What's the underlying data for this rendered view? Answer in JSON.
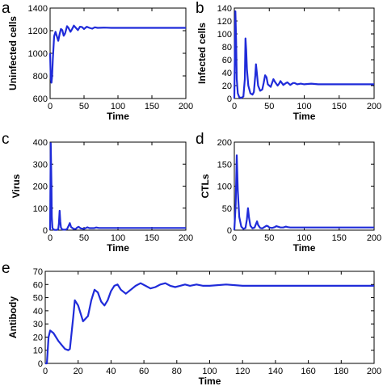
{
  "chart_data": [
    {
      "panel": "a",
      "type": "line",
      "xlabel": "Time",
      "ylabel": "Uninfected cells",
      "xlim": [
        0,
        200
      ],
      "ylim": [
        600,
        1400
      ],
      "xticks": [
        "0",
        "50",
        "100",
        "150",
        "200"
      ],
      "yticks": [
        "600",
        "800",
        "1000",
        "1200",
        "1400"
      ],
      "color": "#1f2bd9",
      "series": [
        {
          "x": [
            0,
            1,
            2,
            3,
            4,
            6,
            8,
            10,
            12,
            14,
            16,
            18,
            20,
            22,
            25,
            27,
            30,
            32,
            35,
            38,
            41,
            44,
            47,
            50,
            54,
            58,
            62,
            66,
            70,
            80,
            90,
            100,
            120,
            150,
            200
          ],
          "y": [
            1000,
            780,
            740,
            800,
            950,
            1150,
            1190,
            1150,
            1110,
            1170,
            1215,
            1205,
            1155,
            1175,
            1240,
            1225,
            1190,
            1210,
            1245,
            1225,
            1205,
            1235,
            1232,
            1215,
            1235,
            1225,
            1218,
            1230,
            1225,
            1227,
            1225,
            1225,
            1225,
            1225,
            1225
          ]
        }
      ]
    },
    {
      "panel": "b",
      "type": "line",
      "xlabel": "Time",
      "ylabel": "Infected  cells",
      "xlim": [
        0,
        200
      ],
      "ylim": [
        0,
        140
      ],
      "xticks": [
        "0",
        "50",
        "100",
        "150",
        "200"
      ],
      "yticks": [
        "0",
        "20",
        "40",
        "60",
        "80",
        "100",
        "120",
        "140"
      ],
      "color": "#1f2bd9",
      "series": [
        {
          "x": [
            0,
            1.5,
            2.5,
            3.5,
            5,
            7,
            10,
            13,
            15,
            16,
            17,
            18,
            20,
            23,
            26,
            28,
            30,
            31,
            32,
            34,
            37,
            40,
            42,
            44,
            46,
            48,
            52,
            54,
            56,
            58,
            62,
            64,
            66,
            70,
            74,
            76,
            80,
            84,
            86,
            90,
            95,
            100,
            110,
            120,
            150,
            200
          ],
          "y": [
            0,
            135,
            90,
            30,
            8,
            2,
            1,
            3,
            30,
            93,
            75,
            45,
            20,
            8,
            6,
            10,
            35,
            53,
            42,
            20,
            12,
            14,
            24,
            36,
            33,
            22,
            18,
            24,
            30,
            26,
            20,
            23,
            27,
            21,
            24,
            25,
            21,
            24,
            24,
            22,
            23,
            22,
            23,
            22,
            22,
            22
          ]
        }
      ]
    },
    {
      "panel": "c",
      "type": "line",
      "xlabel": "Time",
      "ylabel": "Virus",
      "xlim": [
        0,
        200
      ],
      "ylim": [
        0,
        400
      ],
      "xticks": [
        "0",
        "50",
        "100",
        "150",
        "200"
      ],
      "yticks": [
        "0",
        "100",
        "200",
        "300",
        "400"
      ],
      "color": "#1f2bd9",
      "series": [
        {
          "x": [
            0,
            1,
            2,
            2.5,
            3.5,
            5,
            7,
            10,
            12,
            13,
            14,
            15,
            16,
            18,
            22,
            25,
            27,
            29,
            31,
            35,
            38,
            40,
            42,
            45,
            50,
            53,
            55,
            58,
            65,
            68,
            72,
            80,
            100,
            150,
            200
          ],
          "y": [
            0,
            395,
            200,
            60,
            10,
            3,
            1,
            1,
            5,
            30,
            88,
            40,
            12,
            3,
            2,
            5,
            18,
            32,
            14,
            5,
            6,
            12,
            15,
            8,
            6,
            10,
            13,
            9,
            9,
            12,
            10,
            10,
            10,
            10,
            10
          ]
        }
      ]
    },
    {
      "panel": "d",
      "type": "line",
      "xlabel": "Time",
      "ylabel": "CTLs",
      "xlim": [
        0,
        200
      ],
      "ylim": [
        0,
        200
      ],
      "xticks": [
        "0",
        "50",
        "100",
        "150",
        "200"
      ],
      "yticks": [
        "0",
        "50",
        "100",
        "150",
        "200"
      ],
      "color": "#1f2bd9",
      "series": [
        {
          "x": [
            0,
            2,
            3.5,
            5,
            7,
            10,
            13,
            16,
            18,
            19.5,
            21,
            23,
            26,
            29,
            31,
            32.5,
            34,
            37,
            40,
            43,
            46,
            48,
            50,
            54,
            58,
            60,
            62,
            66,
            70,
            74,
            76,
            80,
            90,
            100,
            150,
            200
          ],
          "y": [
            0,
            60,
            170,
            90,
            30,
            8,
            3,
            5,
            25,
            50,
            28,
            10,
            4,
            6,
            14,
            20,
            12,
            5,
            4,
            7,
            10,
            9,
            6,
            5,
            7,
            9,
            8,
            6,
            6,
            8,
            7,
            6,
            6,
            6,
            6,
            6
          ]
        }
      ]
    },
    {
      "panel": "e",
      "type": "line",
      "xlabel": "Time",
      "ylabel": "Antibody",
      "xlim": [
        0,
        200
      ],
      "ylim": [
        0,
        70
      ],
      "xticks": [
        "0",
        "20",
        "40",
        "60",
        "80",
        "100",
        "120",
        "140",
        "160",
        "180",
        "200"
      ],
      "yticks": [
        "0",
        "10",
        "20",
        "30",
        "40",
        "50",
        "60",
        "70"
      ],
      "color": "#1f2bd9",
      "series": [
        {
          "x": [
            0,
            1,
            2,
            3,
            5,
            8,
            10,
            12,
            14,
            15,
            17,
            18,
            20,
            23,
            26,
            28,
            30,
            32,
            34,
            36,
            38,
            40,
            42,
            44,
            46,
            49,
            52,
            55,
            58,
            61,
            64,
            67,
            70,
            73,
            76,
            79,
            82,
            85,
            88,
            92,
            96,
            100,
            110,
            120,
            130,
            140,
            160,
            200
          ],
          "y": [
            0,
            0,
            20,
            25,
            23,
            17,
            14,
            11,
            10,
            11,
            35,
            48,
            44,
            32,
            36,
            48,
            56,
            54,
            47,
            44,
            48,
            55,
            59,
            60,
            56,
            53,
            56,
            59,
            61,
            59,
            57,
            58,
            60,
            61,
            59,
            58,
            59,
            60,
            59,
            60,
            59,
            59,
            60,
            59,
            59,
            59,
            59,
            59
          ]
        }
      ]
    }
  ]
}
